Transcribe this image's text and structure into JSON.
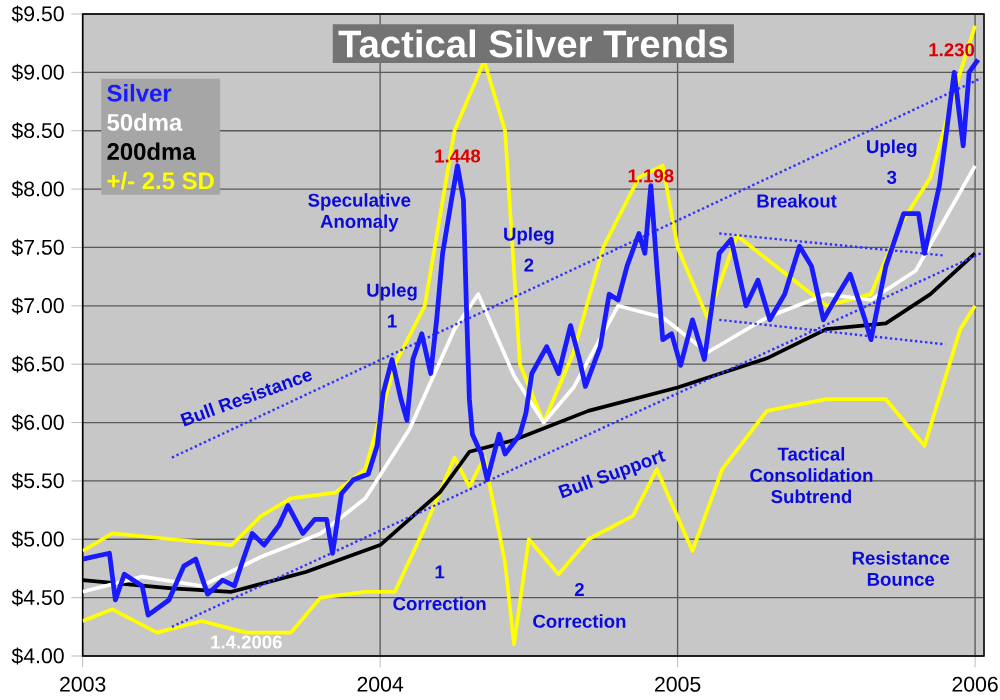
{
  "chart_data": {
    "type": "line",
    "title": "Tactical Silver Trends",
    "xlim": [
      2003,
      2006.03
    ],
    "xticks": [
      2003,
      2004,
      2005,
      2006
    ],
    "ylim": [
      4,
      9.5
    ],
    "yticks": [
      {
        "value": 4,
        "label": "$4.00"
      },
      {
        "value": 4.5,
        "label": "$4.50"
      },
      {
        "value": 5,
        "label": "$5.00"
      },
      {
        "value": 5.5,
        "label": "$5.50"
      },
      {
        "value": 6,
        "label": "$6.00"
      },
      {
        "value": 6.5,
        "label": "$6.50"
      },
      {
        "value": 7,
        "label": "$7.00"
      },
      {
        "value": 7.5,
        "label": "$7.50"
      },
      {
        "value": 8,
        "label": "$8.00"
      },
      {
        "value": 8.5,
        "label": "$8.50"
      },
      {
        "value": 9,
        "label": "$9.00"
      },
      {
        "value": 9.5,
        "label": "$9.50"
      }
    ],
    "grid": true,
    "legend": "top left",
    "marker": "none",
    "line_style": "solid",
    "series": [
      {
        "name": "+/- 2.5 SD",
        "color": "#ffff00",
        "x": [
          2003.0,
          2003.1,
          2003.3,
          2003.5,
          2003.6,
          2003.7,
          2003.85,
          2003.95,
          2004.05,
          2004.15,
          2004.25,
          2004.35,
          2004.42,
          2004.47,
          2004.55,
          2004.65,
          2004.75,
          2004.87,
          2004.95,
          2005.0,
          2005.1,
          2005.2,
          2005.35,
          2005.5,
          2005.65,
          2005.75,
          2005.85,
          2005.95,
          2006.0
        ],
        "values": [
          4.9,
          5.05,
          5.0,
          4.95,
          5.2,
          5.35,
          5.4,
          5.6,
          6.5,
          7.0,
          8.5,
          9.1,
          8.5,
          6.5,
          6.0,
          6.6,
          7.5,
          8.1,
          8.2,
          7.5,
          6.9,
          7.6,
          7.3,
          7.0,
          7.1,
          7.7,
          8.1,
          9.0,
          9.4
        ]
      },
      {
        "color": "#ffff00",
        "x": [
          2003.0,
          2003.1,
          2003.25,
          2003.4,
          2003.55,
          2003.7,
          2003.8,
          2003.95,
          2004.05,
          2004.15,
          2004.25,
          2004.3,
          2004.35,
          2004.42,
          2004.45,
          2004.5,
          2004.6,
          2004.7,
          2004.85,
          2004.93,
          2005.05,
          2005.15,
          2005.3,
          2005.5,
          2005.7,
          2005.83,
          2005.95,
          2006.0
        ],
        "values": [
          4.3,
          4.4,
          4.2,
          4.3,
          4.2,
          4.2,
          4.5,
          4.55,
          4.55,
          5.1,
          5.7,
          5.45,
          5.7,
          4.8,
          4.1,
          5.0,
          4.7,
          5.0,
          5.2,
          5.6,
          4.9,
          5.6,
          6.1,
          6.2,
          6.2,
          5.8,
          6.8,
          7.0
        ]
      },
      {
        "name": "200dma",
        "color": "#000000",
        "x": [
          2003.0,
          2003.3,
          2003.5,
          2003.75,
          2004.0,
          2004.2,
          2004.3,
          2004.45,
          2004.7,
          2005.0,
          2005.3,
          2005.5,
          2005.7,
          2005.85,
          2006.0
        ],
        "values": [
          4.65,
          4.58,
          4.55,
          4.72,
          4.95,
          5.4,
          5.75,
          5.85,
          6.1,
          6.3,
          6.55,
          6.8,
          6.85,
          7.1,
          7.45
        ]
      },
      {
        "name": "50dma",
        "color": "#ffffff",
        "x": [
          2003.0,
          2003.2,
          2003.4,
          2003.6,
          2003.8,
          2003.95,
          2004.1,
          2004.25,
          2004.33,
          2004.45,
          2004.55,
          2004.65,
          2004.8,
          2004.95,
          2005.1,
          2005.3,
          2005.5,
          2005.65,
          2005.8,
          2006.0
        ],
        "values": [
          4.55,
          4.68,
          4.6,
          4.85,
          5.05,
          5.35,
          5.95,
          6.8,
          7.1,
          6.4,
          6.0,
          6.3,
          7.0,
          6.9,
          6.6,
          6.9,
          7.1,
          7.05,
          7.3,
          8.2
        ]
      },
      {
        "color": "#3333ff",
        "line_style": "dotted",
        "x": [
          2003.3,
          2006.02
        ],
        "values": [
          5.7,
          8.95
        ]
      },
      {
        "color": "#3333ff",
        "line_style": "dotted",
        "x": [
          2003.3,
          2006.02
        ],
        "values": [
          4.25,
          7.45
        ]
      },
      {
        "color": "#3333ff",
        "line_style": "dotted",
        "x": [
          2005.14,
          2005.9
        ],
        "values": [
          7.62,
          7.43
        ]
      },
      {
        "color": "#3333ff",
        "line_style": "dotted",
        "x": [
          2005.14,
          2005.9
        ],
        "values": [
          6.88,
          6.67
        ]
      },
      {
        "name": "Silver",
        "color": "#1a1aff",
        "x": [
          2003.0,
          2003.09,
          2003.11,
          2003.14,
          2003.2,
          2003.22,
          2003.29,
          2003.34,
          2003.38,
          2003.42,
          2003.47,
          2003.51,
          2003.54,
          2003.57,
          2003.61,
          2003.66,
          2003.69,
          2003.74,
          2003.78,
          2003.82,
          2003.84,
          2003.87,
          2003.91,
          2003.96,
          2003.99,
          2004.01,
          2004.04,
          2004.07,
          2004.09,
          2004.11,
          2004.14,
          2004.17,
          2004.19,
          2004.21,
          2004.24,
          2004.26,
          2004.28,
          2004.29,
          2004.3,
          2004.31,
          2004.34,
          2004.36,
          2004.4,
          2004.42,
          2004.47,
          2004.49,
          2004.51,
          2004.56,
          2004.6,
          2004.64,
          2004.67,
          2004.69,
          2004.74,
          2004.77,
          2004.8,
          2004.83,
          2004.87,
          2004.89,
          2004.91,
          2004.93,
          2004.95,
          2004.98,
          2005.01,
          2005.05,
          2005.09,
          2005.14,
          2005.18,
          2005.23,
          2005.27,
          2005.31,
          2005.36,
          2005.41,
          2005.45,
          2005.49,
          2005.54,
          2005.58,
          2005.63,
          2005.65,
          2005.7,
          2005.76,
          2005.81,
          2005.83,
          2005.88,
          2005.93,
          2005.96,
          2005.98,
          2006.01
        ],
        "values": [
          4.83,
          4.88,
          4.48,
          4.7,
          4.6,
          4.35,
          4.48,
          4.77,
          4.83,
          4.53,
          4.65,
          4.6,
          4.83,
          5.05,
          4.95,
          5.12,
          5.29,
          5.05,
          5.17,
          5.17,
          4.88,
          5.39,
          5.51,
          5.56,
          5.8,
          6.25,
          6.54,
          6.2,
          6.02,
          6.54,
          6.76,
          6.42,
          6.88,
          7.45,
          7.91,
          8.2,
          7.91,
          7.0,
          6.2,
          5.9,
          5.73,
          5.51,
          5.9,
          5.73,
          5.9,
          6.08,
          6.42,
          6.65,
          6.42,
          6.83,
          6.54,
          6.31,
          6.65,
          7.1,
          7.05,
          7.34,
          7.62,
          7.45,
          8.03,
          7.34,
          6.71,
          6.76,
          6.49,
          6.88,
          6.54,
          7.45,
          7.57,
          7.0,
          7.22,
          6.88,
          7.1,
          7.51,
          7.34,
          6.88,
          7.1,
          7.27,
          6.88,
          6.71,
          7.34,
          7.79,
          7.79,
          7.45,
          8.03,
          9.0,
          8.37,
          9.0,
          9.11
        ]
      }
    ],
    "annotations": [
      {
        "text": "1.448",
        "x": 2004.26,
        "y": 8.2
      },
      "Speculative Anomaly",
      "Upleg",
      "1",
      "Correction",
      "1",
      "Bull Resistance",
      {
        "text": "1.198",
        "x": 2004.91,
        "y": 8.03
      },
      "Upleg",
      "2",
      "Correction",
      "2",
      "Bull Support",
      "Breakout",
      "Tactical Consolidation Subtrend",
      "Resistance Bounce",
      "Upleg",
      "3",
      {
        "text": "1.230",
        "x": 2006.01,
        "y": 9.11
      },
      "1.4.2006"
    ]
  }
}
